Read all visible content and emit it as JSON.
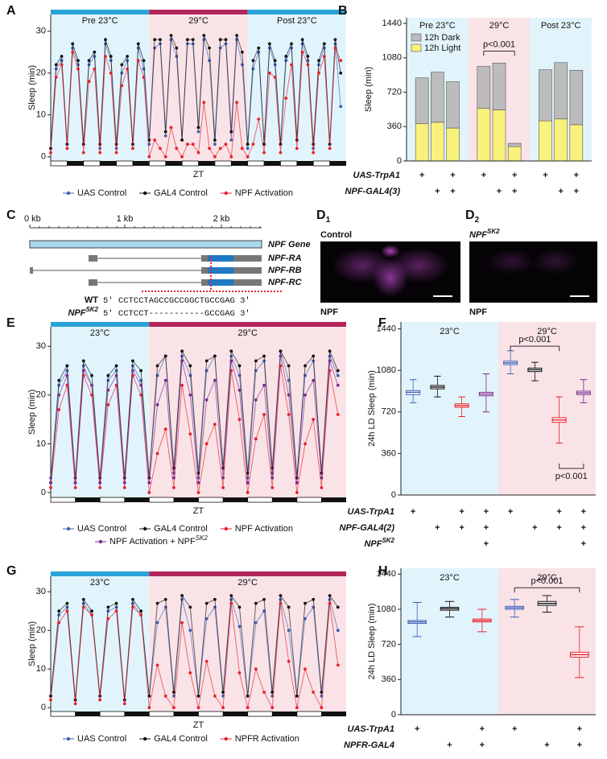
{
  "chart_data": [
    {
      "type": "line",
      "panel": "A",
      "regions": [
        {
          "label": "Pre 23°C",
          "from": 0,
          "to": 72,
          "color": "#e2f4fb",
          "bar_color": "#2aa3d9"
        },
        {
          "label": "29°C",
          "from": 72,
          "to": 144,
          "color": "#f9e3e7",
          "bar_color": "#b3265b"
        },
        {
          "label": "Post 23°C",
          "from": 144,
          "to": 216,
          "color": "#e2f4fb",
          "bar_color": "#2aa3d9"
        }
      ],
      "x": [
        0,
        4,
        8,
        12,
        16,
        20,
        24,
        28,
        32,
        36,
        40,
        44,
        48,
        52,
        56,
        60,
        64,
        68,
        72,
        76,
        80,
        84,
        88,
        92,
        96,
        100,
        104,
        108,
        112,
        116,
        120,
        124,
        128,
        132,
        136,
        140,
        144,
        148,
        152,
        156,
        160,
        164,
        168,
        172,
        176,
        180,
        184,
        188,
        192,
        196,
        200,
        204,
        208,
        212
      ],
      "xlim": [
        0,
        216
      ],
      "ylim": [
        -1,
        34
      ],
      "yticks": [
        0,
        10,
        20,
        30
      ],
      "ylabel": "Sleep (min)",
      "xlabel": "ZT",
      "series": [
        {
          "name": "UAS Control",
          "color": "#3f5fb5",
          "values": [
            2,
            21,
            23,
            3,
            26,
            22,
            3,
            22,
            24,
            2,
            27,
            23,
            2,
            20,
            23,
            3,
            26,
            21,
            3,
            26,
            27,
            5,
            28,
            24,
            4,
            27,
            27,
            6,
            28,
            23,
            3,
            26,
            27,
            4,
            28,
            22,
            2,
            21,
            25,
            3,
            26,
            22,
            3,
            23,
            26,
            4,
            27,
            23,
            2,
            22,
            26,
            3,
            27,
            12
          ]
        },
        {
          "name": "GAL4 Control",
          "color": "#111111",
          "values": [
            2,
            22,
            24,
            3,
            27,
            23,
            3,
            23,
            25,
            3,
            28,
            24,
            3,
            22,
            24,
            3,
            27,
            23,
            4,
            28,
            28,
            6,
            29,
            26,
            4,
            28,
            28,
            7,
            29,
            26,
            4,
            28,
            28,
            6,
            29,
            25,
            3,
            23,
            26,
            3,
            27,
            23,
            3,
            24,
            27,
            4,
            28,
            24,
            3,
            23,
            27,
            3,
            28,
            20
          ]
        },
        {
          "name": "NPF Activation",
          "color": "#e8202a",
          "values": [
            1,
            19,
            22,
            2,
            25,
            21,
            1,
            18,
            21,
            1,
            24,
            20,
            1,
            17,
            21,
            2,
            23,
            19,
            0,
            4,
            2,
            0,
            7,
            2,
            0,
            3,
            3,
            1,
            13,
            2,
            0,
            2,
            3,
            0,
            13,
            2,
            0,
            3,
            9,
            1,
            20,
            19,
            1,
            14,
            22,
            2,
            25,
            22,
            1,
            20,
            24,
            2,
            26,
            23
          ]
        }
      ]
    },
    {
      "type": "stacked_bar",
      "panel": "B",
      "series": [
        {
          "name": "12h Dark",
          "color": "#bcbcbc"
        },
        {
          "name": "12h Light",
          "color": "#f8f27c"
        }
      ],
      "groups": [
        {
          "label": "Pre 23°C",
          "color": "#e2f4fb",
          "light": [
            390,
            405,
            345
          ],
          "dark": [
            480,
            525,
            485
          ]
        },
        {
          "label": "29°C",
          "color": "#f9e3e7",
          "light": [
            550,
            535,
            150
          ],
          "dark": [
            440,
            490,
            35
          ]
        },
        {
          "label": "Post 23°C",
          "color": "#e2f4fb",
          "light": [
            420,
            440,
            380
          ],
          "dark": [
            535,
            590,
            570
          ]
        }
      ],
      "ylim": [
        0,
        1500
      ],
      "yticks": [
        0,
        360,
        720,
        1080,
        1440
      ],
      "ylabel": "Sleep (min)",
      "annotations": [
        "p<0.001"
      ],
      "genotype_rows": [
        {
          "label": "UAS-TrpA1",
          "marks": [
            "+",
            null,
            "+",
            "+",
            null,
            "+",
            "+",
            null,
            "+"
          ]
        },
        {
          "label": "NPF-GAL4(3)",
          "marks": [
            null,
            "+",
            "+",
            null,
            "+",
            "+",
            null,
            "+",
            "+"
          ]
        }
      ]
    },
    {
      "type": "line",
      "panel": "E",
      "regions": [
        {
          "label": "23°C",
          "from": 0,
          "to": 48,
          "color": "#e2f4fb",
          "bar_color": "#2aa3d9"
        },
        {
          "label": "29°C",
          "from": 48,
          "to": 144,
          "color": "#f9e3e7",
          "bar_color": "#b3265b"
        }
      ],
      "x": [
        0,
        4,
        8,
        12,
        16,
        20,
        24,
        28,
        32,
        36,
        40,
        44,
        48,
        52,
        56,
        60,
        64,
        68,
        72,
        76,
        80,
        84,
        88,
        92,
        96,
        100,
        104,
        108,
        112,
        116,
        120,
        124,
        128,
        132,
        136,
        140
      ],
      "xlim": [
        0,
        144
      ],
      "ylim": [
        -1,
        34
      ],
      "yticks": [
        0,
        10,
        20,
        30
      ],
      "ylabel": "Sleep (min)",
      "xlabel": "ZT",
      "series": [
        {
          "name": "UAS Control",
          "color": "#3f5fb5",
          "values": [
            3,
            22,
            25,
            2,
            26,
            22,
            2,
            23,
            25,
            3,
            26,
            23,
            3,
            24,
            28,
            4,
            28,
            24,
            3,
            25,
            28,
            5,
            28,
            24,
            3,
            25,
            27,
            4,
            29,
            23,
            3,
            24,
            27,
            4,
            28,
            24
          ]
        },
        {
          "name": "GAL4 Control",
          "color": "#111111",
          "values": [
            2,
            23,
            26,
            3,
            27,
            24,
            3,
            24,
            26,
            3,
            27,
            25,
            3,
            26,
            28,
            5,
            29,
            26,
            4,
            27,
            28,
            5,
            29,
            26,
            4,
            27,
            28,
            5,
            29,
            26,
            3,
            26,
            28,
            4,
            29,
            25
          ]
        },
        {
          "name": "NPF Activation",
          "color": "#e8202a",
          "values": [
            1,
            17,
            22,
            1,
            24,
            20,
            1,
            18,
            22,
            1,
            24,
            20,
            0,
            8,
            13,
            1,
            22,
            12,
            0,
            10,
            14,
            1,
            25,
            15,
            0,
            11,
            16,
            1,
            26,
            16,
            0,
            10,
            15,
            1,
            25,
            16
          ]
        },
        {
          "name": "NPF Activation + NPF",
          "name_sup": "SK2",
          "color": "#7d2a8f",
          "values": [
            2,
            20,
            24,
            2,
            25,
            22,
            2,
            21,
            24,
            2,
            25,
            22,
            2,
            18,
            23,
            3,
            27,
            20,
            2,
            19,
            23,
            3,
            27,
            21,
            2,
            19,
            22,
            3,
            28,
            20,
            2,
            20,
            23,
            3,
            27,
            22
          ]
        }
      ]
    },
    {
      "type": "box",
      "panel": "F",
      "ylim": [
        0,
        1500
      ],
      "yticks": [
        0,
        360,
        720,
        1080,
        1440
      ],
      "ylabel": "24h LD Sleep (min)",
      "panels": [
        {
          "label": "23°C",
          "color": "#e2f4fb",
          "boxes": [
            {
              "color": "#3f5fb5",
              "low": 800,
              "q1": 870,
              "median": 890,
              "q3": 905,
              "high": 1000
            },
            {
              "color": "#111111",
              "low": 850,
              "q1": 920,
              "median": 935,
              "q3": 950,
              "high": 1030
            },
            {
              "color": "#e8202a",
              "low": 680,
              "q1": 760,
              "median": 775,
              "q3": 790,
              "high": 850
            },
            {
              "color": "#7d2a8f",
              "low": 720,
              "q1": 860,
              "median": 875,
              "q3": 890,
              "high": 1050
            }
          ]
        },
        {
          "label": "29°C",
          "color": "#f9e3e7",
          "boxes": [
            {
              "color": "#3f5fb5",
              "low": 1050,
              "q1": 1130,
              "median": 1145,
              "q3": 1160,
              "high": 1250
            },
            {
              "color": "#111111",
              "low": 990,
              "q1": 1070,
              "median": 1085,
              "q3": 1100,
              "high": 1150
            },
            {
              "color": "#e8202a",
              "low": 450,
              "q1": 630,
              "median": 650,
              "q3": 670,
              "high": 850
            },
            {
              "color": "#7d2a8f",
              "low": 800,
              "q1": 870,
              "median": 885,
              "q3": 900,
              "high": 1000
            }
          ]
        }
      ],
      "annotations": [
        "p<0.001",
        "p<0.001"
      ],
      "genotype_rows": [
        {
          "label": "UAS-TrpA1",
          "marks": [
            "+",
            null,
            "+",
            "+",
            "+",
            null,
            "+",
            "+"
          ]
        },
        {
          "label": "NPF-GAL4(2)",
          "marks": [
            null,
            "+",
            "+",
            "+",
            null,
            "+",
            "+",
            "+"
          ]
        },
        {
          "label": "NPF",
          "label_sup": "SK2",
          "marks": [
            null,
            null,
            null,
            "+",
            null,
            null,
            null,
            "+"
          ]
        }
      ]
    },
    {
      "type": "line",
      "panel": "G",
      "regions": [
        {
          "label": "23°C",
          "from": 0,
          "to": 48,
          "color": "#e2f4fb",
          "bar_color": "#2aa3d9"
        },
        {
          "label": "29°C",
          "from": 48,
          "to": 144,
          "color": "#f9e3e7",
          "bar_color": "#b3265b"
        }
      ],
      "x": [
        0,
        4,
        8,
        12,
        16,
        20,
        24,
        28,
        32,
        36,
        40,
        44,
        48,
        52,
        56,
        60,
        64,
        68,
        72,
        76,
        80,
        84,
        88,
        92,
        96,
        100,
        104,
        108,
        112,
        116,
        120,
        124,
        128,
        132,
        136,
        140
      ],
      "xlim": [
        0,
        144
      ],
      "ylim": [
        -1,
        34
      ],
      "yticks": [
        0,
        10,
        20,
        30
      ],
      "ylabel": "Sleep (min)",
      "xlabel": "ZT",
      "series": [
        {
          "name": "UAS Control",
          "color": "#3f5fb5",
          "values": [
            3,
            24,
            26,
            2,
            27,
            24,
            3,
            25,
            26,
            2,
            27,
            24,
            3,
            22,
            26,
            3,
            28,
            20,
            3,
            23,
            26,
            3,
            28,
            21,
            3,
            22,
            25,
            3,
            28,
            20,
            3,
            23,
            26,
            3,
            28,
            20
          ]
        },
        {
          "name": "GAL4 Control",
          "color": "#111111",
          "values": [
            3,
            25,
            27,
            2,
            28,
            25,
            3,
            26,
            27,
            2,
            28,
            25,
            3,
            27,
            28,
            4,
            29,
            26,
            3,
            27,
            28,
            4,
            29,
            26,
            3,
            27,
            28,
            4,
            29,
            26,
            3,
            27,
            28,
            4,
            29,
            26
          ]
        },
        {
          "name": "NPFR Activation",
          "color": "#e8202a",
          "values": [
            2,
            22,
            25,
            1,
            26,
            24,
            2,
            23,
            25,
            1,
            26,
            24,
            0,
            11,
            3,
            0,
            22,
            9,
            0,
            12,
            3,
            0,
            27,
            9,
            0,
            10,
            4,
            0,
            27,
            12,
            0,
            10,
            4,
            0,
            27,
            11
          ]
        }
      ]
    },
    {
      "type": "box",
      "panel": "H",
      "ylim": [
        0,
        1500
      ],
      "yticks": [
        0,
        360,
        720,
        1080,
        1440
      ],
      "ylabel": "24h LD Sleep (min)",
      "panels": [
        {
          "label": "23°C",
          "color": "#e2f4fb",
          "boxes": [
            {
              "color": "#3f5fb5",
              "low": 800,
              "q1": 935,
              "median": 950,
              "q3": 965,
              "high": 1150
            },
            {
              "color": "#111111",
              "low": 1000,
              "q1": 1070,
              "median": 1085,
              "q3": 1100,
              "high": 1160
            },
            {
              "color": "#e8202a",
              "low": 850,
              "q1": 950,
              "median": 965,
              "q3": 980,
              "high": 1080
            }
          ]
        },
        {
          "label": "29°C",
          "color": "#f9e3e7",
          "boxes": [
            {
              "color": "#3f5fb5",
              "low": 1000,
              "q1": 1080,
              "median": 1095,
              "q3": 1110,
              "high": 1180
            },
            {
              "color": "#111111",
              "low": 1050,
              "q1": 1120,
              "median": 1140,
              "q3": 1160,
              "high": 1220
            },
            {
              "color": "#e8202a",
              "low": 380,
              "q1": 590,
              "median": 615,
              "q3": 640,
              "high": 900
            }
          ]
        }
      ],
      "annotations": [
        "p<0.001"
      ],
      "genotype_rows": [
        {
          "label": "UAS-TrpA1",
          "marks": [
            "+",
            null,
            "+",
            "+",
            null,
            "+"
          ]
        },
        {
          "label": "NPFR-GAL4",
          "marks": [
            null,
            "+",
            "+",
            null,
            "+",
            "+"
          ]
        }
      ]
    }
  ],
  "gene_panel": {
    "panel": "C",
    "scale": [
      "0 kb",
      "1 kb",
      "2 kb"
    ],
    "gene": "NPF Gene",
    "transcripts": [
      "NPF-RA",
      "NPF-RB",
      "NPF-RC"
    ],
    "sequences": [
      {
        "name": "WT",
        "seq": "5' CCTCCTAGCCGCCGGCTGCCGAG 3'"
      },
      {
        "name": "NPF",
        "name_sup": "SK2",
        "seq": "5' CCTCCT-----------GCCGAG 3'"
      }
    ]
  },
  "image_panel": {
    "panel": "D",
    "items": [
      {
        "sub": "1",
        "title": "Control",
        "stain": "NPF"
      },
      {
        "sub": "2",
        "title": "NPF",
        "title_sup": "SK2",
        "stain": "NPF"
      }
    ]
  }
}
